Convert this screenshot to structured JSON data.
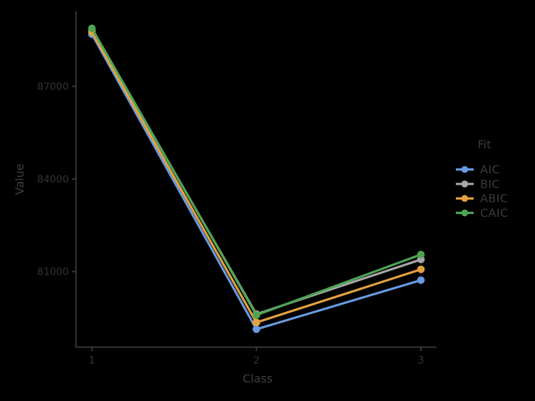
{
  "app": {
    "background_color": "#000000"
  },
  "chart_data": {
    "type": "line",
    "title": "",
    "xlabel": "Class",
    "ylabel": "Value",
    "x": [
      1,
      2,
      3
    ],
    "xticks": [
      {
        "value": 1,
        "label": "1"
      },
      {
        "value": 2,
        "label": "2"
      },
      {
        "value": 3,
        "label": "3"
      }
    ],
    "yticks": [
      {
        "value": 81000,
        "label": "81000"
      },
      {
        "value": 84000,
        "label": "84000"
      },
      {
        "value": 87000,
        "label": "87000"
      }
    ],
    "xlim": [
      0.903,
      3.095
    ],
    "ylim": [
      78550,
      89430
    ],
    "grid": false,
    "series": [
      {
        "name": "AIC",
        "color": "#689AE1",
        "values": [
          88690,
          79130,
          80720
        ]
      },
      {
        "name": "BIC",
        "color": "#A6A6A6",
        "values": [
          88840,
          79620,
          81390
        ]
      },
      {
        "name": "ABIC",
        "color": "#E3A23F",
        "values": [
          88760,
          79350,
          81070
        ]
      },
      {
        "name": "CAIC",
        "color": "#4FA454",
        "values": [
          88880,
          79590,
          81550
        ]
      }
    ],
    "legend": {
      "title": "Fit",
      "position": "right"
    },
    "style": {
      "axis_line_color": "#3C3C3C",
      "tick_color": "#3C3C3C",
      "tick_label_color": "#333333",
      "axis_title_color": "#3F3F3F",
      "legend_text_color": "#3A3A3A",
      "legend_title_color": "#3A3A3A"
    }
  }
}
